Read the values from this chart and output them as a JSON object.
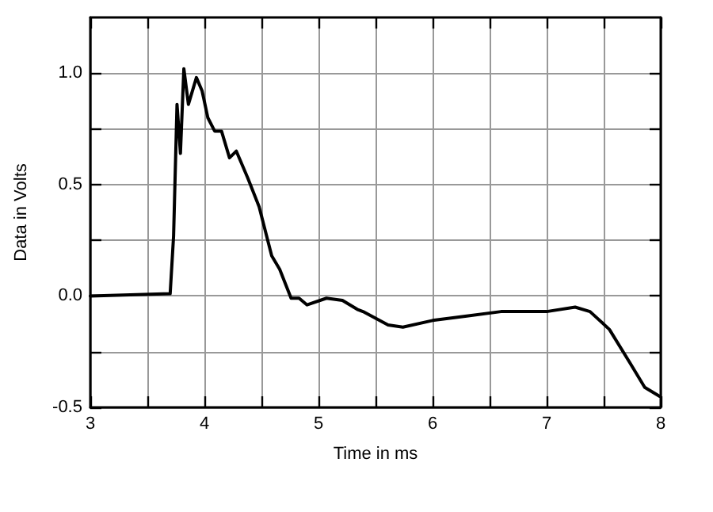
{
  "chart_data": {
    "type": "line",
    "xlabel": "Time in ms",
    "ylabel": "Data in Volts",
    "xlim": [
      3,
      8
    ],
    "ylim": [
      -0.5,
      1.25
    ],
    "xticks": [
      3,
      {
        "value": 3.5,
        "label": null
      },
      4,
      {
        "value": 4.5,
        "label": null
      },
      5,
      {
        "value": 5.5,
        "label": null
      },
      6,
      {
        "value": 6.5,
        "label": null
      },
      7,
      {
        "value": 7.5,
        "label": null
      },
      8
    ],
    "yticks": [
      {
        "value": -0.5,
        "label": "-0.5"
      },
      {
        "value": -0.25,
        "label": null
      },
      {
        "value": 0,
        "label": "0.0"
      },
      {
        "value": 0.25,
        "label": null
      },
      {
        "value": 0.5,
        "label": "0.5"
      },
      {
        "value": 0.75,
        "label": null
      },
      {
        "value": 1,
        "label": "1.0"
      }
    ],
    "grid": true,
    "marker": "none",
    "line_style": "solid",
    "series": [
      {
        "color": "#000000",
        "x": [
          3,
          3.7,
          3.73,
          3.76,
          3.79,
          3.82,
          3.86,
          3.93,
          3.98,
          4.03,
          4.09,
          4.15,
          4.22,
          4.28,
          4.38,
          4.48,
          4.59,
          4.66,
          4.76,
          4.83,
          4.9,
          5.07,
          5.21,
          5.34,
          5.39,
          5.61,
          5.74,
          6.0,
          6.3,
          6.6,
          7.0,
          7.25,
          7.38,
          7.55,
          7.73,
          7.86,
          7.99
        ],
        "values": [
          0,
          0.01,
          0.27,
          0.86,
          0.64,
          1.02,
          0.86,
          0.98,
          0.92,
          0.8,
          0.74,
          0.74,
          0.62,
          0.65,
          0.53,
          0.4,
          0.18,
          0.12,
          -0.01,
          -0.01,
          -0.04,
          -0.01,
          -0.02,
          -0.06,
          -0.07,
          -0.13,
          -0.14,
          -0.11,
          -0.09,
          -0.07,
          -0.07,
          -0.05,
          -0.07,
          -0.15,
          -0.3,
          -0.41,
          -0.45
        ]
      }
    ]
  }
}
